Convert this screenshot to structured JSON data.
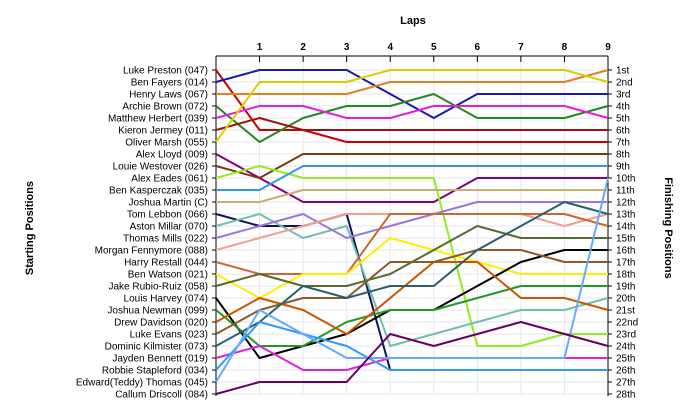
{
  "chart_data": {
    "type": "line",
    "title": "Laps",
    "xlabel": "Laps",
    "ylabel_left": "Starting Positions",
    "ylabel_right": "Finishing Positions",
    "x": [
      0,
      1,
      2,
      3,
      4,
      5,
      6,
      7,
      8,
      9
    ],
    "x_tick_labels": [
      "1",
      "2",
      "3",
      "4",
      "5",
      "6",
      "7",
      "8",
      "9"
    ],
    "ylim": [
      1,
      28
    ],
    "grid": true,
    "finishing_positions": [
      "1st",
      "2nd",
      "3rd",
      "4th",
      "5th",
      "6th",
      "7th",
      "8th",
      "9th",
      "10th",
      "11th",
      "12th",
      "13th",
      "14th",
      "15th",
      "16th",
      "17th",
      "18th",
      "19th",
      "20th",
      "21st",
      "22nd",
      "23rd",
      "24th",
      "25th",
      "26th",
      "27th",
      "28th"
    ],
    "series": [
      {
        "name": "Luke Preston (047)",
        "color": "#cc0000",
        "values": [
          1,
          6,
          6,
          7,
          7,
          7,
          7,
          7,
          7,
          7
        ]
      },
      {
        "name": "Ben Fayers (014)",
        "color": "#1a1aaa",
        "values": [
          2,
          1,
          1,
          1,
          3,
          5,
          3,
          3,
          3,
          3
        ]
      },
      {
        "name": "Henry Laws (067)",
        "color": "#e08020",
        "values": [
          3,
          3,
          3,
          3,
          2,
          2,
          2,
          2,
          2,
          1
        ]
      },
      {
        "name": "Archie Brown (072)",
        "color": "#228822",
        "values": [
          4,
          7,
          5,
          4,
          4,
          3,
          5,
          5,
          5,
          4
        ]
      },
      {
        "name": "Matthew Herbert (039)",
        "color": "#e020e0",
        "values": [
          5,
          4,
          4,
          5,
          5,
          4,
          4,
          4,
          4,
          5
        ]
      },
      {
        "name": "Kieron Jermey (011)",
        "color": "#a01010",
        "values": [
          6,
          5,
          6,
          6,
          6,
          6,
          6,
          6,
          6,
          6
        ]
      },
      {
        "name": "Oliver Marsh (055)",
        "color": "#ddcc00",
        "values": [
          7,
          2,
          2,
          2,
          1,
          1,
          1,
          1,
          1,
          2
        ]
      },
      {
        "name": "Alex Lloyd (009)",
        "color": "#800080",
        "values": [
          8,
          10,
          12,
          12,
          12,
          12,
          10,
          10,
          10,
          10
        ]
      },
      {
        "name": "Louie Westover (026)",
        "color": "#7a3a10",
        "values": [
          9,
          10,
          8,
          8,
          8,
          8,
          8,
          8,
          8,
          8
        ]
      },
      {
        "name": "Alex Eades (061)",
        "color": "#90ee20",
        "values": [
          10,
          9,
          10,
          10,
          10,
          10,
          24,
          24,
          23,
          23
        ]
      },
      {
        "name": "Ben Kasperczak (035)",
        "color": "#3399dd",
        "values": [
          11,
          11,
          9,
          9,
          9,
          9,
          9,
          9,
          9,
          9
        ]
      },
      {
        "name": "Joshua Martin (C)",
        "color": "#c8b070",
        "values": [
          12,
          12,
          11,
          11,
          11,
          11,
          11,
          11,
          11,
          11
        ]
      },
      {
        "name": "Tom Lebbon (066)",
        "color": "#111155",
        "values": [
          13,
          14,
          14,
          13,
          26,
          26,
          26,
          26,
          26,
          26
        ]
      },
      {
        "name": "Aston Millar (070)",
        "color": "#70c0b0",
        "values": [
          14,
          13,
          15,
          14,
          24,
          23,
          22,
          21,
          21,
          20
        ]
      },
      {
        "name": "Thomas Mills (022)",
        "color": "#9977dd",
        "values": [
          15,
          14,
          13,
          15,
          14,
          13,
          12,
          12,
          12,
          12
        ]
      },
      {
        "name": "Morgan Fennymore (088)",
        "color": "#f0a090",
        "values": [
          16,
          15,
          14,
          13,
          13,
          13,
          13,
          13,
          14,
          13
        ]
      },
      {
        "name": "Harry Restall (044)",
        "color": "#cc6633",
        "values": [
          17,
          18,
          18,
          18,
          13,
          13,
          13,
          13,
          13,
          14
        ]
      },
      {
        "name": "Ben Watson (021)",
        "color": "#ffee00",
        "values": [
          18,
          20,
          18,
          18,
          15,
          16,
          17,
          18,
          18,
          18
        ]
      },
      {
        "name": "Jake Rubio-Ruiz (058)",
        "color": "#556b2f",
        "values": [
          19,
          18,
          19,
          19,
          18,
          16,
          14,
          15,
          15,
          15
        ]
      },
      {
        "name": "Louis Harvey (074)",
        "color": "#000000",
        "values": [
          20,
          25,
          24,
          23,
          21,
          21,
          19,
          17,
          16,
          16
        ]
      },
      {
        "name": "Joshua Newman (099)",
        "color": "#229922",
        "values": [
          21,
          24,
          24,
          22,
          21,
          21,
          20,
          19,
          19,
          19
        ]
      },
      {
        "name": "Drew Davidson (020)",
        "color": "#cc5500",
        "values": [
          22,
          20,
          21,
          23,
          20,
          17,
          17,
          20,
          20,
          21
        ]
      },
      {
        "name": "Luke Evans (023)",
        "color": "#8a5a2a",
        "values": [
          23,
          21,
          20,
          20,
          17,
          17,
          16,
          16,
          17,
          17
        ]
      },
      {
        "name": "Dominic Kilmister (073)",
        "color": "#2a5f6f",
        "values": [
          24,
          22,
          19,
          20,
          19,
          19,
          16,
          14,
          12,
          13
        ]
      },
      {
        "name": "Jayden Bennett (019)",
        "color": "#dd22dd",
        "values": [
          25,
          24,
          26,
          26,
          25,
          25,
          25,
          25,
          25,
          25
        ]
      },
      {
        "name": "Robbie Stapleford (034)",
        "color": "#3399ff",
        "values": [
          26,
          22,
          23,
          24,
          26,
          26,
          26,
          26,
          26,
          26
        ]
      },
      {
        "name": "Edward(Teddy) Thomas (045)",
        "color": "#66aaff",
        "values": [
          27,
          21,
          23,
          25,
          25,
          25,
          25,
          25,
          25,
          10
        ]
      },
      {
        "name": "Callum Driscoll (084)",
        "color": "#660066",
        "values": [
          28,
          27,
          27,
          27,
          23,
          24,
          23,
          22,
          23,
          24
        ]
      }
    ]
  }
}
